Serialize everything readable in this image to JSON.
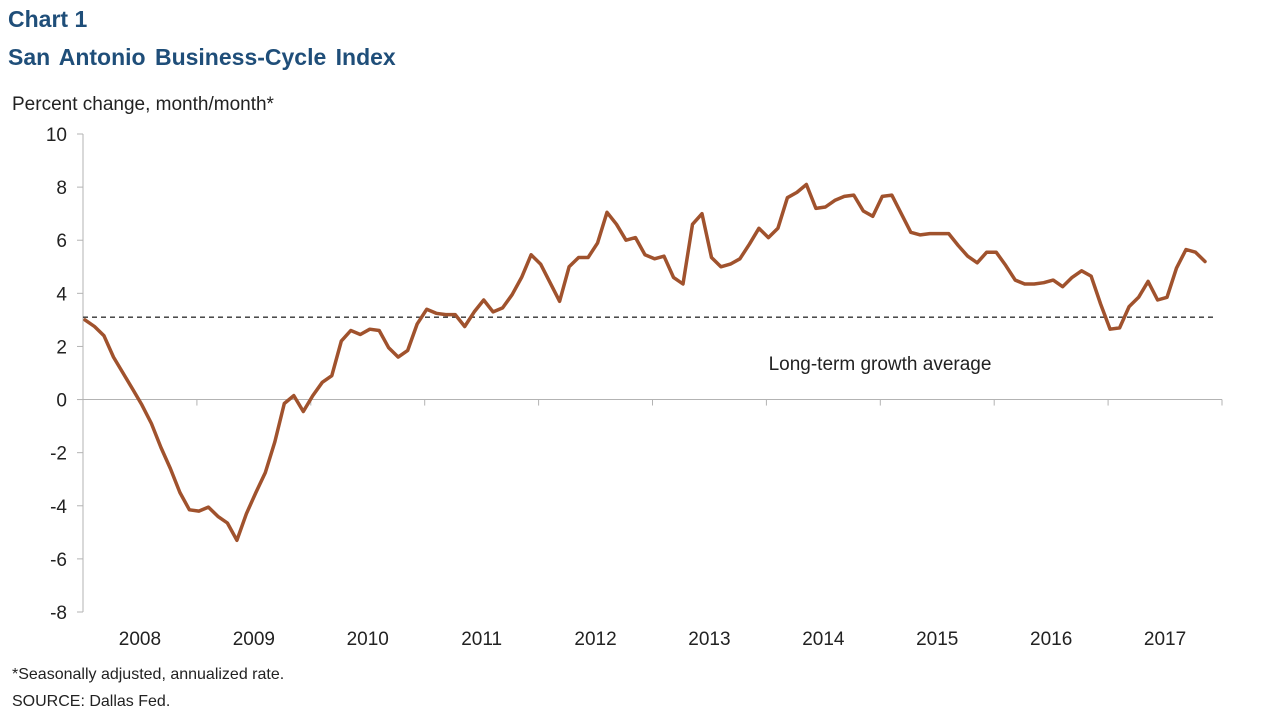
{
  "chart_label": "Chart 1",
  "chart_data": {
    "type": "line",
    "title": "San Antonio Business-Cycle Index",
    "ylabel": "Percent change, month/month*",
    "ylim": [
      -8,
      10
    ],
    "yticks": [
      10,
      8,
      6,
      4,
      2,
      0,
      -2,
      -4,
      -6,
      -8
    ],
    "xticks": [
      "2008",
      "2009",
      "2010",
      "2011",
      "2012",
      "2013",
      "2014",
      "2015",
      "2016",
      "2017"
    ],
    "reference_line": {
      "label": "Long-term growth average",
      "value": 3.1
    },
    "series": [
      {
        "color": "#a0522d",
        "values": [
          [
            "2008-01",
            3.0
          ],
          [
            "2008-02",
            2.75
          ],
          [
            "2008-03",
            2.4
          ],
          [
            "2008-04",
            1.6
          ],
          [
            "2008-05",
            1.0
          ],
          [
            "2008-06",
            0.4
          ],
          [
            "2008-07",
            -0.2
          ],
          [
            "2008-08",
            -0.9
          ],
          [
            "2008-09",
            -1.8
          ],
          [
            "2008-10",
            -2.6
          ],
          [
            "2008-11",
            -3.5
          ],
          [
            "2008-12",
            -4.15
          ],
          [
            "2009-01",
            -4.2
          ],
          [
            "2009-02",
            -4.05
          ],
          [
            "2009-03",
            -4.4
          ],
          [
            "2009-04",
            -4.65
          ],
          [
            "2009-05",
            -5.3
          ],
          [
            "2009-06",
            -4.3
          ],
          [
            "2009-07",
            -3.5
          ],
          [
            "2009-08",
            -2.75
          ],
          [
            "2009-09",
            -1.6
          ],
          [
            "2009-10",
            -0.15
          ],
          [
            "2009-11",
            0.15
          ],
          [
            "2009-12",
            -0.45
          ],
          [
            "2010-01",
            0.15
          ],
          [
            "2010-02",
            0.65
          ],
          [
            "2010-03",
            0.9
          ],
          [
            "2010-04",
            2.2
          ],
          [
            "2010-05",
            2.6
          ],
          [
            "2010-06",
            2.45
          ],
          [
            "2010-07",
            2.65
          ],
          [
            "2010-08",
            2.6
          ],
          [
            "2010-09",
            1.95
          ],
          [
            "2010-10",
            1.6
          ],
          [
            "2010-11",
            1.85
          ],
          [
            "2010-12",
            2.85
          ],
          [
            "2011-01",
            3.4
          ],
          [
            "2011-02",
            3.25
          ],
          [
            "2011-03",
            3.2
          ],
          [
            "2011-04",
            3.2
          ],
          [
            "2011-05",
            2.75
          ],
          [
            "2011-06",
            3.3
          ],
          [
            "2011-07",
            3.75
          ],
          [
            "2011-08",
            3.3
          ],
          [
            "2011-09",
            3.45
          ],
          [
            "2011-10",
            3.95
          ],
          [
            "2011-11",
            4.6
          ],
          [
            "2011-12",
            5.45
          ],
          [
            "2012-01",
            5.1
          ],
          [
            "2012-02",
            4.4
          ],
          [
            "2012-03",
            3.7
          ],
          [
            "2012-04",
            5.0
          ],
          [
            "2012-05",
            5.35
          ],
          [
            "2012-06",
            5.35
          ],
          [
            "2012-07",
            5.9
          ],
          [
            "2012-08",
            7.05
          ],
          [
            "2012-09",
            6.6
          ],
          [
            "2012-10",
            6.0
          ],
          [
            "2012-11",
            6.1
          ],
          [
            "2012-12",
            5.45
          ],
          [
            "2013-01",
            5.3
          ],
          [
            "2013-02",
            5.4
          ],
          [
            "2013-03",
            4.6
          ],
          [
            "2013-04",
            4.35
          ],
          [
            "2013-05",
            6.6
          ],
          [
            "2013-06",
            7.0
          ],
          [
            "2013-07",
            5.35
          ],
          [
            "2013-08",
            5.0
          ],
          [
            "2013-09",
            5.1
          ],
          [
            "2013-10",
            5.3
          ],
          [
            "2013-11",
            5.85
          ],
          [
            "2013-12",
            6.45
          ],
          [
            "2014-01",
            6.1
          ],
          [
            "2014-02",
            6.45
          ],
          [
            "2014-03",
            7.6
          ],
          [
            "2014-04",
            7.8
          ],
          [
            "2014-05",
            8.1
          ],
          [
            "2014-06",
            7.2
          ],
          [
            "2014-07",
            7.25
          ],
          [
            "2014-08",
            7.5
          ],
          [
            "2014-09",
            7.65
          ],
          [
            "2014-10",
            7.7
          ],
          [
            "2014-11",
            7.1
          ],
          [
            "2014-12",
            6.9
          ],
          [
            "2015-01",
            7.65
          ],
          [
            "2015-02",
            7.7
          ],
          [
            "2015-03",
            7.0
          ],
          [
            "2015-04",
            6.3
          ],
          [
            "2015-05",
            6.2
          ],
          [
            "2015-06",
            6.25
          ],
          [
            "2015-07",
            6.25
          ],
          [
            "2015-08",
            6.25
          ],
          [
            "2015-09",
            5.8
          ],
          [
            "2015-10",
            5.4
          ],
          [
            "2015-11",
            5.15
          ],
          [
            "2015-12",
            5.55
          ],
          [
            "2016-01",
            5.55
          ],
          [
            "2016-02",
            5.05
          ],
          [
            "2016-03",
            4.5
          ],
          [
            "2016-04",
            4.35
          ],
          [
            "2016-05",
            4.35
          ],
          [
            "2016-06",
            4.4
          ],
          [
            "2016-07",
            4.5
          ],
          [
            "2016-08",
            4.25
          ],
          [
            "2016-09",
            4.6
          ],
          [
            "2016-10",
            4.85
          ],
          [
            "2016-11",
            4.65
          ],
          [
            "2016-12",
            3.6
          ],
          [
            "2017-01",
            2.65
          ],
          [
            "2017-02",
            2.7
          ],
          [
            "2017-03",
            3.5
          ],
          [
            "2017-04",
            3.85
          ],
          [
            "2017-05",
            4.45
          ],
          [
            "2017-06",
            3.75
          ],
          [
            "2017-07",
            3.85
          ],
          [
            "2017-08",
            4.95
          ],
          [
            "2017-09",
            5.65
          ],
          [
            "2017-10",
            5.55
          ],
          [
            "2017-11",
            5.2
          ]
        ]
      }
    ],
    "grid": false
  },
  "footnote": "*Seasonally adjusted, annualized rate.",
  "source": "SOURCE: Dallas Fed."
}
